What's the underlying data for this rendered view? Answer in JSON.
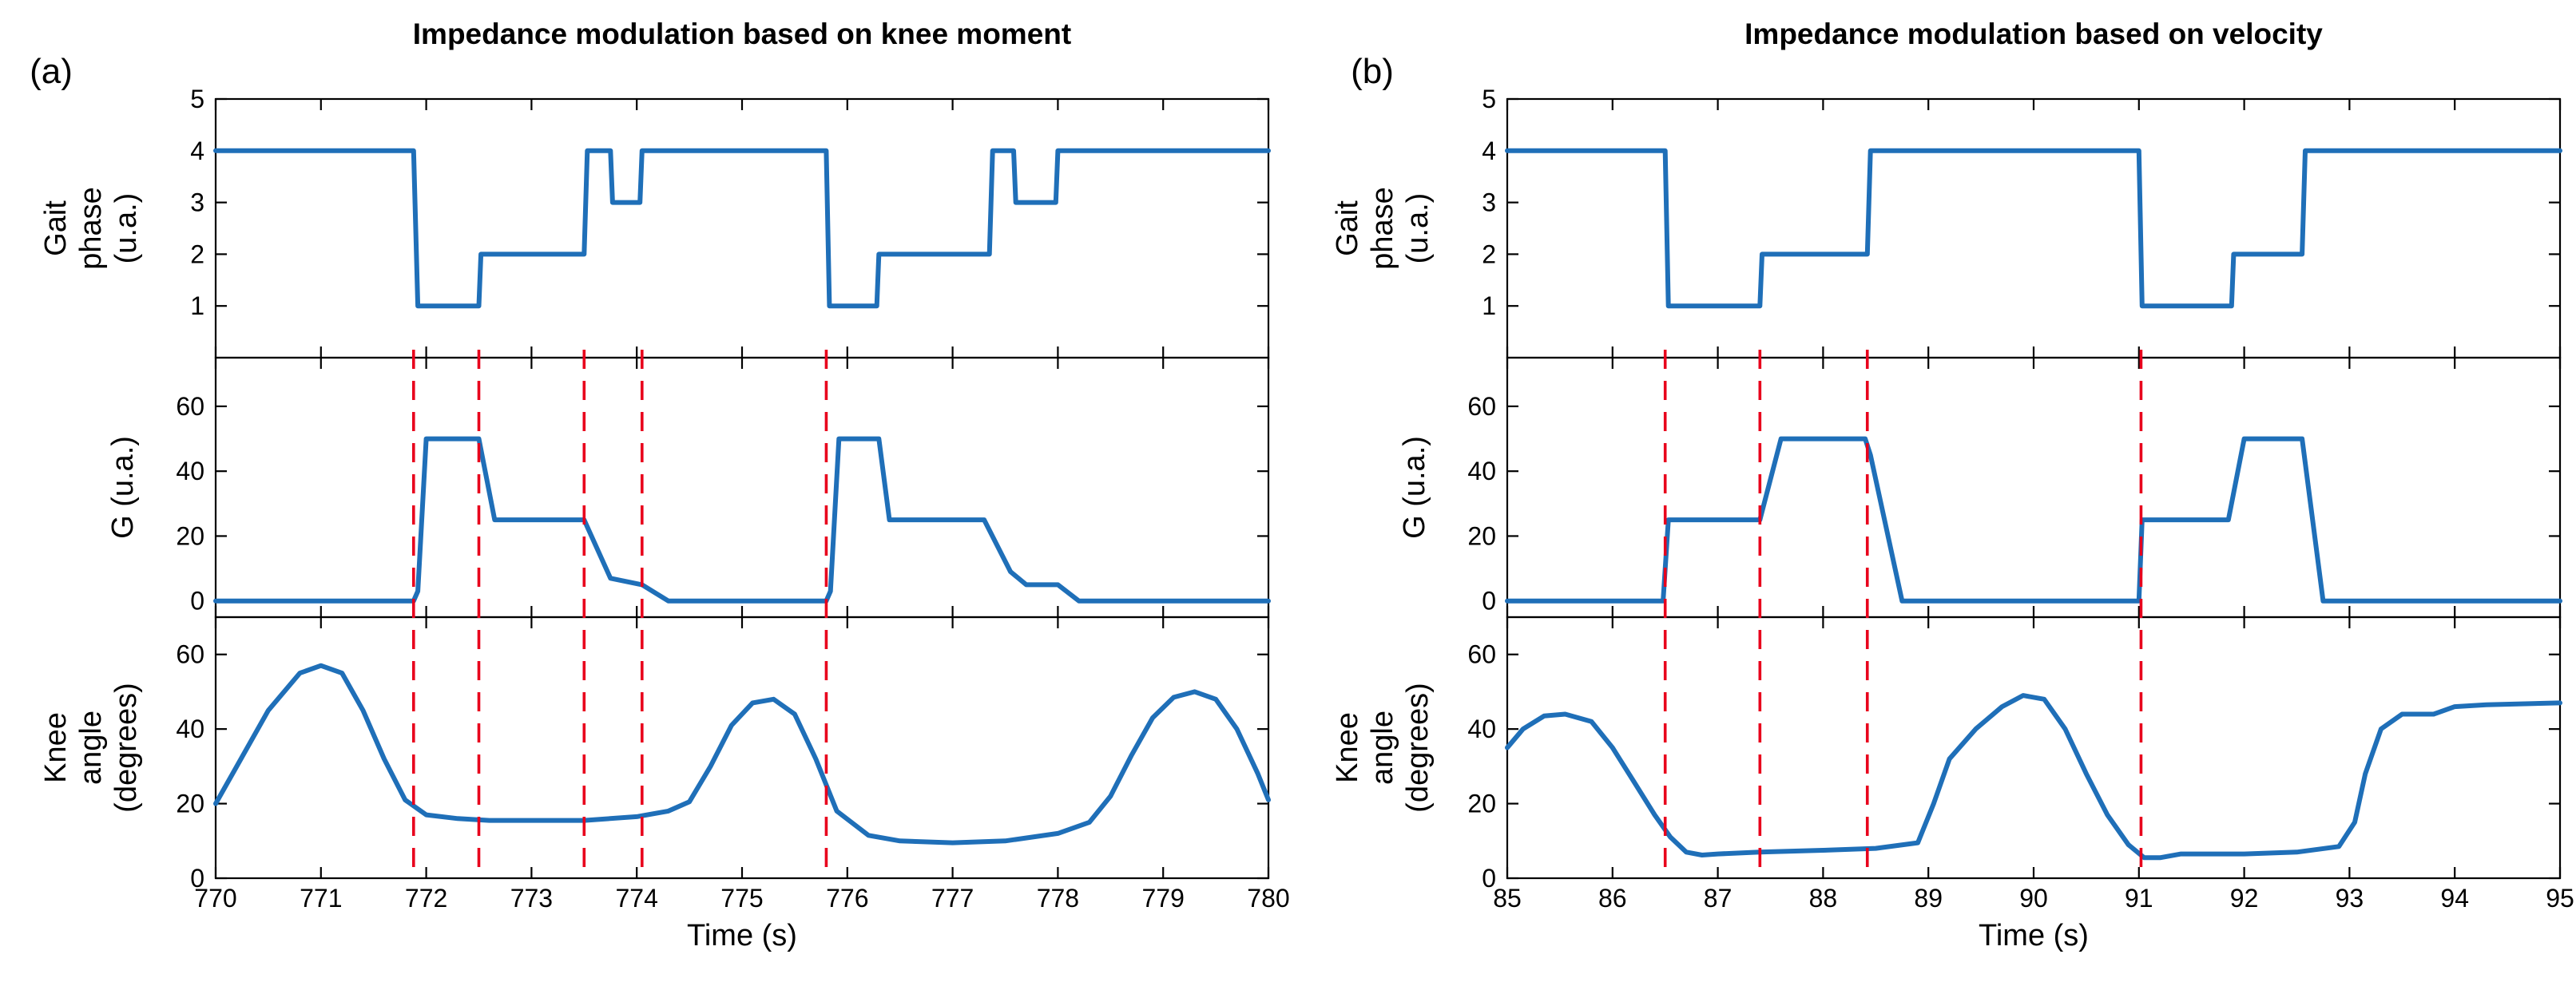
{
  "colors": {
    "series": "#1f6fb8",
    "event_line": "#e8001c",
    "axis": "#000000"
  },
  "chart_data": [
    {
      "type": "line",
      "panel_label": "(a)",
      "title": "Impedance modulation based on knee moment",
      "xlabel": "Time (s)",
      "xlim": [
        770,
        780
      ],
      "xticks": [
        "770",
        "771",
        "772",
        "773",
        "774",
        "775",
        "776",
        "777",
        "778",
        "779",
        "780"
      ],
      "event_times": [
        771.88,
        772.5,
        773.5,
        774.05,
        775.8
      ],
      "subplots": [
        {
          "ylabel_lines": [
            "Gait",
            "phase",
            "(u.a.)"
          ],
          "ylim": [
            0,
            5
          ],
          "yticks": [
            "1",
            "2",
            "3",
            "4",
            "5"
          ],
          "series": [
            {
              "name": "Gait phase",
              "x": [
                770,
                771.88,
                771.92,
                772.5,
                772.52,
                773.5,
                773.53,
                773.75,
                773.77,
                774.03,
                774.05,
                775.8,
                775.83,
                776.28,
                776.3,
                777.35,
                777.38,
                777.58,
                777.6,
                777.98,
                778.0,
                780
              ],
              "y": [
                4,
                4,
                1,
                1,
                2,
                2,
                4,
                4,
                3,
                3,
                4,
                4,
                1,
                1,
                2,
                2,
                4,
                4,
                3,
                3,
                4,
                4
              ]
            }
          ]
        },
        {
          "ylabel_lines": [
            "G (u.a.)"
          ],
          "ylim": [
            -5,
            75
          ],
          "yticks": [
            "0",
            "20",
            "40",
            "60"
          ],
          "series": [
            {
              "name": "G",
              "x": [
                770,
                771.88,
                771.92,
                772.0,
                772.5,
                772.65,
                773.5,
                773.75,
                774.05,
                774.3,
                775.8,
                775.84,
                775.92,
                776.3,
                776.4,
                777.3,
                777.55,
                777.7,
                778.0,
                778.2,
                780
              ],
              "y": [
                0,
                0,
                3,
                50,
                50,
                25,
                25,
                7,
                5,
                0,
                0,
                3,
                50,
                50,
                25,
                25,
                9,
                5,
                5,
                0,
                0
              ]
            }
          ]
        },
        {
          "ylabel_lines": [
            "Knee",
            "angle",
            "(degrees)"
          ],
          "ylim": [
            0,
            70
          ],
          "yticks": [
            "0",
            "20",
            "40",
            "60"
          ],
          "series": [
            {
              "name": "Knee angle",
              "x": [
                770,
                770.2,
                770.5,
                770.8,
                771.0,
                771.2,
                771.4,
                771.6,
                771.8,
                772.0,
                772.3,
                772.6,
                773.0,
                773.5,
                774.0,
                774.3,
                774.5,
                774.7,
                774.9,
                775.1,
                775.3,
                775.5,
                775.7,
                775.9,
                776.2,
                776.5,
                777.0,
                777.5,
                778.0,
                778.3,
                778.5,
                778.7,
                778.9,
                779.1,
                779.3,
                779.5,
                779.7,
                779.9,
                780
              ],
              "y": [
                20,
                30,
                45,
                55,
                57,
                55,
                45,
                32,
                21,
                17,
                16,
                15.5,
                15.5,
                15.5,
                16.5,
                18,
                20.5,
                30,
                41,
                47,
                48,
                44,
                32,
                18,
                11.5,
                10,
                9.5,
                10,
                12,
                15,
                22,
                33,
                43,
                48.5,
                50,
                48,
                40,
                28,
                21
              ]
            }
          ]
        }
      ]
    },
    {
      "type": "line",
      "panel_label": "(b)",
      "title": "Impedance modulation based on velocity",
      "xlabel": "Time (s)",
      "xlim": [
        85,
        95
      ],
      "xticks": [
        "85",
        "86",
        "87",
        "88",
        "89",
        "90",
        "91",
        "92",
        "93",
        "94",
        "95"
      ],
      "event_times": [
        86.5,
        87.4,
        88.42,
        91.02
      ],
      "subplots": [
        {
          "ylabel_lines": [
            "Gait",
            "phase",
            "(u.a.)"
          ],
          "ylim": [
            0,
            5
          ],
          "yticks": [
            "1",
            "2",
            "3",
            "4",
            "5"
          ],
          "series": [
            {
              "name": "Gait phase",
              "x": [
                85,
                86.5,
                86.53,
                87.4,
                87.42,
                88.42,
                88.45,
                91.0,
                91.03,
                91.88,
                91.9,
                92.55,
                92.58,
                95
              ],
              "y": [
                4,
                4,
                1,
                1,
                2,
                2,
                4,
                4,
                1,
                1,
                2,
                2,
                4,
                4
              ]
            }
          ]
        },
        {
          "ylabel_lines": [
            "G (u.a.)"
          ],
          "ylim": [
            -5,
            75
          ],
          "yticks": [
            "0",
            "20",
            "40",
            "60"
          ],
          "series": [
            {
              "name": "G",
              "x": [
                85,
                86.48,
                86.53,
                87.4,
                87.6,
                88.4,
                88.45,
                88.75,
                91.0,
                91.03,
                91.85,
                92.0,
                92.55,
                92.75,
                95
              ],
              "y": [
                0,
                0,
                25,
                25,
                50,
                50,
                45,
                0,
                0,
                25,
                25,
                50,
                50,
                0,
                0
              ]
            }
          ]
        },
        {
          "ylabel_lines": [
            "Knee",
            "angle",
            "(degrees)"
          ],
          "ylim": [
            0,
            70
          ],
          "yticks": [
            "0",
            "20",
            "40",
            "60"
          ],
          "series": [
            {
              "name": "Knee angle",
              "x": [
                85,
                85.15,
                85.35,
                85.55,
                85.8,
                86.0,
                86.2,
                86.4,
                86.55,
                86.7,
                86.85,
                87.0,
                87.4,
                88.0,
                88.5,
                88.9,
                89.05,
                89.2,
                89.45,
                89.7,
                89.9,
                90.1,
                90.3,
                90.5,
                90.7,
                90.9,
                91.05,
                91.2,
                91.4,
                92.0,
                92.5,
                92.9,
                93.05,
                93.15,
                93.3,
                93.5,
                93.8,
                94.0,
                94.3,
                95
              ],
              "y": [
                35,
                40,
                43.5,
                44,
                42,
                35,
                26,
                17,
                11,
                7,
                6.2,
                6.5,
                7,
                7.5,
                8,
                9.5,
                20,
                32,
                40,
                46,
                49,
                48,
                40,
                28,
                17,
                9,
                5.5,
                5.5,
                6.5,
                6.5,
                7,
                8.5,
                15,
                28,
                40,
                44,
                44,
                46,
                46.5,
                47
              ]
            }
          ]
        }
      ]
    }
  ]
}
